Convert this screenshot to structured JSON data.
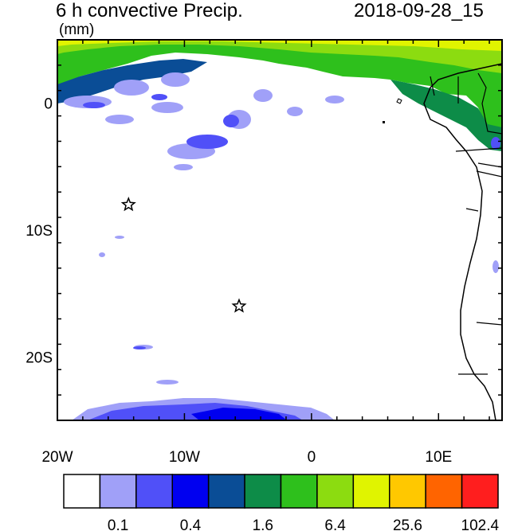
{
  "header": {
    "title_left": "6 h convective Precip.",
    "title_right": "2018-09-28_15",
    "units": "(mm)"
  },
  "axes": {
    "x_ticks": [
      {
        "label": "20W",
        "lon": -20
      },
      {
        "label": "10W",
        "lon": -10
      },
      {
        "label": "0",
        "lon": 0
      },
      {
        "label": "10E",
        "lon": 10
      }
    ],
    "y_ticks": [
      {
        "label": "0",
        "lat": 0
      },
      {
        "label": "10S",
        "lat": -10
      },
      {
        "label": "20S",
        "lat": -20
      }
    ],
    "lon_range": [
      -20,
      15
    ],
    "lat_range": [
      -25,
      5
    ]
  },
  "markers": [
    {
      "name": "star-marker-1",
      "lon": -14.4,
      "lat": -8.0
    },
    {
      "name": "star-marker-2",
      "lon": -5.7,
      "lat": -16.0
    }
  ],
  "colorbar": {
    "colors": [
      "#ffffff",
      "#a0a0f8",
      "#5050f8",
      "#0000f0",
      "#0a4d96",
      "#0d8c48",
      "#2ec01c",
      "#8cdc10",
      "#e0f400",
      "#ffc800",
      "#ff6400",
      "#ff1e1e"
    ],
    "labels": [
      "0.1",
      "0.4",
      "1.6",
      "6.4",
      "25.6",
      "102.4"
    ]
  }
}
